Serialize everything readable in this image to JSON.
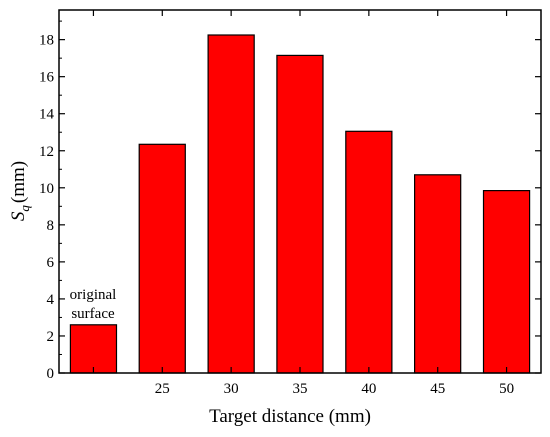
{
  "chart_data": {
    "type": "bar",
    "categories": [
      "",
      "25",
      "30",
      "35",
      "40",
      "45",
      "50"
    ],
    "values": [
      2.6,
      12.35,
      18.25,
      17.15,
      13.05,
      10.7,
      9.85
    ],
    "xlabel": "Target distance (mm)",
    "ylabel": {
      "symbol": "S",
      "subscript": "q",
      "unit": "(mm)"
    },
    "ylim": [
      0,
      19.6
    ],
    "yticks": [
      "0",
      "2",
      "4",
      "6",
      "8",
      "10",
      "12",
      "14",
      "16",
      "18"
    ],
    "annotation": {
      "line1": "original",
      "line2": "surface"
    },
    "bar_color": "#ff0000",
    "grid": false,
    "legend": "none"
  }
}
